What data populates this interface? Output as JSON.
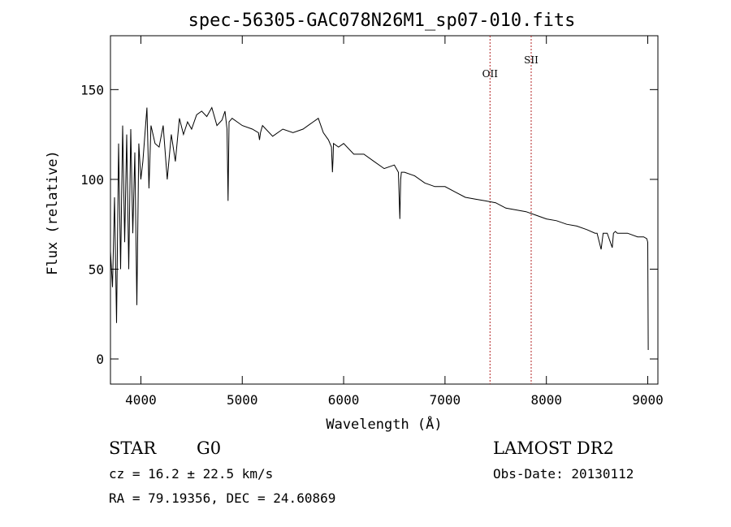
{
  "chart_data": {
    "type": "line",
    "title": "spec-56305-GAC078N26M1_sp07-010.fits",
    "xlabel": "Wavelength (Å)",
    "ylabel": "Flux (relative)",
    "xlim": [
      3700,
      9100
    ],
    "ylim": [
      -14,
      180
    ],
    "x_ticks": [
      4000,
      5000,
      6000,
      7000,
      8000,
      9000
    ],
    "y_ticks": [
      0,
      50,
      100,
      150
    ],
    "grid": false,
    "series": [
      {
        "values_note": "",
        "x": [
          3700,
          3720,
          3740,
          3760,
          3780,
          3800,
          3820,
          3840,
          3860,
          3880,
          3900,
          3920,
          3940,
          3960,
          3980,
          4000,
          4020,
          4040,
          4060,
          4080,
          4100,
          4140,
          4180,
          4220,
          4260,
          4300,
          4340,
          4380,
          4420,
          4460,
          4500,
          4550,
          4600,
          4650,
          4700,
          4750,
          4800,
          4830,
          4850,
          4860,
          4870,
          4900,
          4950,
          5000,
          5100,
          5160,
          5170,
          5180,
          5200,
          5300,
          5400,
          5500,
          5600,
          5700,
          5750,
          5800,
          5850,
          5880,
          5890,
          5896,
          5900,
          5950,
          6000,
          6100,
          6200,
          6300,
          6400,
          6500,
          6540,
          6555,
          6563,
          6570,
          6600,
          6700,
          6800,
          6900,
          7000,
          7100,
          7200,
          7300,
          7400,
          7500,
          7600,
          7700,
          7800,
          7900,
          8000,
          8100,
          8200,
          8300,
          8400,
          8480,
          8500,
          8540,
          8560,
          8600,
          8650,
          8662,
          8680,
          8700,
          8800,
          8900,
          8960,
          8990,
          9000,
          9005
        ],
        "y": [
          60,
          40,
          90,
          20,
          120,
          50,
          130,
          65,
          125,
          50,
          128,
          70,
          115,
          30,
          120,
          100,
          110,
          125,
          140,
          95,
          130,
          120,
          118,
          130,
          100,
          125,
          110,
          134,
          125,
          132,
          128,
          136,
          138,
          135,
          140,
          130,
          133,
          138,
          128,
          88,
          132,
          134,
          132,
          130,
          128,
          126,
          122,
          126,
          130,
          124,
          128,
          126,
          128,
          132,
          134,
          126,
          122,
          118,
          104,
          112,
          120,
          118,
          120,
          114,
          114,
          110,
          106,
          108,
          104,
          78,
          100,
          104,
          104,
          102,
          98,
          96,
          96,
          93,
          90,
          89,
          88,
          87,
          84,
          83,
          82,
          80,
          78,
          77,
          75,
          74,
          72,
          70,
          70,
          61,
          70,
          70,
          62,
          70,
          71,
          70,
          70,
          68,
          68,
          67,
          65,
          5
        ]
      }
    ],
    "vlines": [
      {
        "x": 7444,
        "label": "OII",
        "color": "#b22222"
      },
      {
        "x": 7850,
        "label": "SII",
        "color": "#b22222"
      }
    ]
  },
  "info": {
    "object_class": "STAR",
    "subclass": "G0",
    "survey": "LAMOST DR2",
    "redshift": "cz = 16.2 ± 22.5 km/s",
    "obs_date": "Obs-Date: 20130112",
    "coords": "RA =  79.19356, DEC =  24.60869"
  }
}
